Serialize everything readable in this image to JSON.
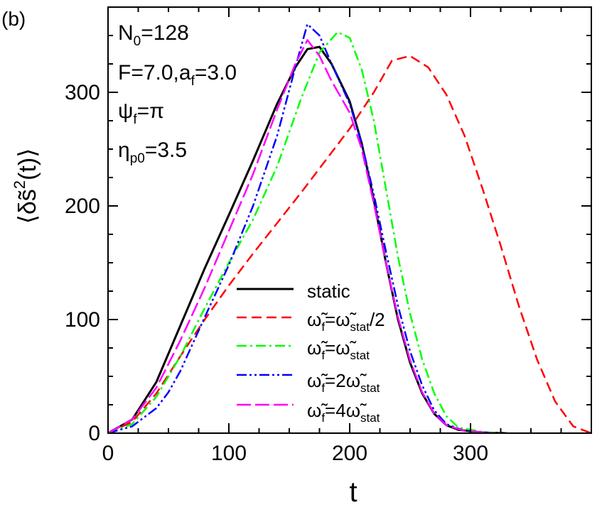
{
  "panel_label": "(b)",
  "chart_data": {
    "type": "line",
    "title": "",
    "xlabel": "t",
    "ylabel": "⟨δs̃²(t)⟩",
    "xlim": [
      0,
      400
    ],
    "ylim": [
      0,
      375
    ],
    "xticks": [
      0,
      100,
      200,
      300
    ],
    "yticks": [
      0,
      100,
      200,
      300
    ],
    "x_minor_step": 25,
    "y_minor_step": 25,
    "grid": false,
    "legend_position": "bottom-right",
    "annotations": [
      "N0=128",
      "F=7.0,af=3.0",
      "ψf=π",
      "ηp0=3.5"
    ],
    "series": [
      {
        "name": "static",
        "color": "#000000",
        "dash": "solid",
        "points": [
          [
            0,
            0
          ],
          [
            20,
            12
          ],
          [
            40,
            45
          ],
          [
            60,
            95
          ],
          [
            80,
            145
          ],
          [
            100,
            192
          ],
          [
            120,
            240
          ],
          [
            140,
            290
          ],
          [
            155,
            322
          ],
          [
            165,
            338
          ],
          [
            175,
            340
          ],
          [
            185,
            325
          ],
          [
            200,
            292
          ],
          [
            210,
            255
          ],
          [
            220,
            205
          ],
          [
            230,
            150
          ],
          [
            240,
            100
          ],
          [
            250,
            62
          ],
          [
            260,
            35
          ],
          [
            270,
            17
          ],
          [
            280,
            7
          ],
          [
            290,
            3
          ],
          [
            310,
            0.5
          ],
          [
            330,
            0
          ]
        ]
      },
      {
        "name": "ω̃f=ω̃stat/2",
        "color": "#ff0000",
        "dash": "dashed",
        "points": [
          [
            0,
            0
          ],
          [
            20,
            10
          ],
          [
            40,
            35
          ],
          [
            60,
            68
          ],
          [
            80,
            100
          ],
          [
            100,
            130
          ],
          [
            120,
            158
          ],
          [
            140,
            185
          ],
          [
            160,
            212
          ],
          [
            180,
            240
          ],
          [
            200,
            268
          ],
          [
            220,
            300
          ],
          [
            235,
            328
          ],
          [
            250,
            332
          ],
          [
            265,
            322
          ],
          [
            280,
            298
          ],
          [
            295,
            262
          ],
          [
            310,
            215
          ],
          [
            325,
            165
          ],
          [
            340,
            112
          ],
          [
            355,
            65
          ],
          [
            370,
            28
          ],
          [
            385,
            6
          ],
          [
            400,
            0
          ]
        ]
      },
      {
        "name": "ω̃f=ω̃stat",
        "color": "#00ff00",
        "dash": "dashdot",
        "points": [
          [
            0,
            0
          ],
          [
            20,
            8
          ],
          [
            40,
            32
          ],
          [
            60,
            68
          ],
          [
            80,
            110
          ],
          [
            100,
            150
          ],
          [
            120,
            188
          ],
          [
            140,
            235
          ],
          [
            160,
            295
          ],
          [
            175,
            335
          ],
          [
            190,
            353
          ],
          [
            200,
            348
          ],
          [
            210,
            320
          ],
          [
            220,
            275
          ],
          [
            230,
            215
          ],
          [
            240,
            155
          ],
          [
            250,
            105
          ],
          [
            260,
            65
          ],
          [
            270,
            35
          ],
          [
            280,
            15
          ],
          [
            290,
            5
          ],
          [
            310,
            1
          ],
          [
            330,
            0
          ]
        ]
      },
      {
        "name": "ω̃f=2ω̃stat",
        "color": "#0000ff",
        "dash": "dashdotdot",
        "points": [
          [
            0,
            0
          ],
          [
            20,
            6
          ],
          [
            40,
            22
          ],
          [
            50,
            36
          ],
          [
            60,
            55
          ],
          [
            80,
            102
          ],
          [
            100,
            148
          ],
          [
            120,
            200
          ],
          [
            140,
            262
          ],
          [
            155,
            322
          ],
          [
            165,
            360
          ],
          [
            175,
            350
          ],
          [
            185,
            325
          ],
          [
            200,
            290
          ],
          [
            210,
            255
          ],
          [
            220,
            210
          ],
          [
            230,
            160
          ],
          [
            240,
            112
          ],
          [
            250,
            72
          ],
          [
            260,
            42
          ],
          [
            270,
            20
          ],
          [
            280,
            8
          ],
          [
            295,
            2
          ],
          [
            320,
            0
          ]
        ]
      },
      {
        "name": "ω̃f=4ω̃stat",
        "color": "#ff00ff",
        "dash": "longdash",
        "points": [
          [
            0,
            0
          ],
          [
            20,
            12
          ],
          [
            40,
            40
          ],
          [
            60,
            82
          ],
          [
            80,
            128
          ],
          [
            100,
            178
          ],
          [
            120,
            228
          ],
          [
            140,
            285
          ],
          [
            155,
            325
          ],
          [
            165,
            346
          ],
          [
            175,
            332
          ],
          [
            185,
            310
          ],
          [
            200,
            282
          ],
          [
            210,
            250
          ],
          [
            220,
            202
          ],
          [
            230,
            150
          ],
          [
            240,
            102
          ],
          [
            250,
            64
          ],
          [
            260,
            36
          ],
          [
            270,
            17
          ],
          [
            280,
            7
          ],
          [
            295,
            2
          ],
          [
            320,
            0
          ]
        ]
      }
    ]
  }
}
